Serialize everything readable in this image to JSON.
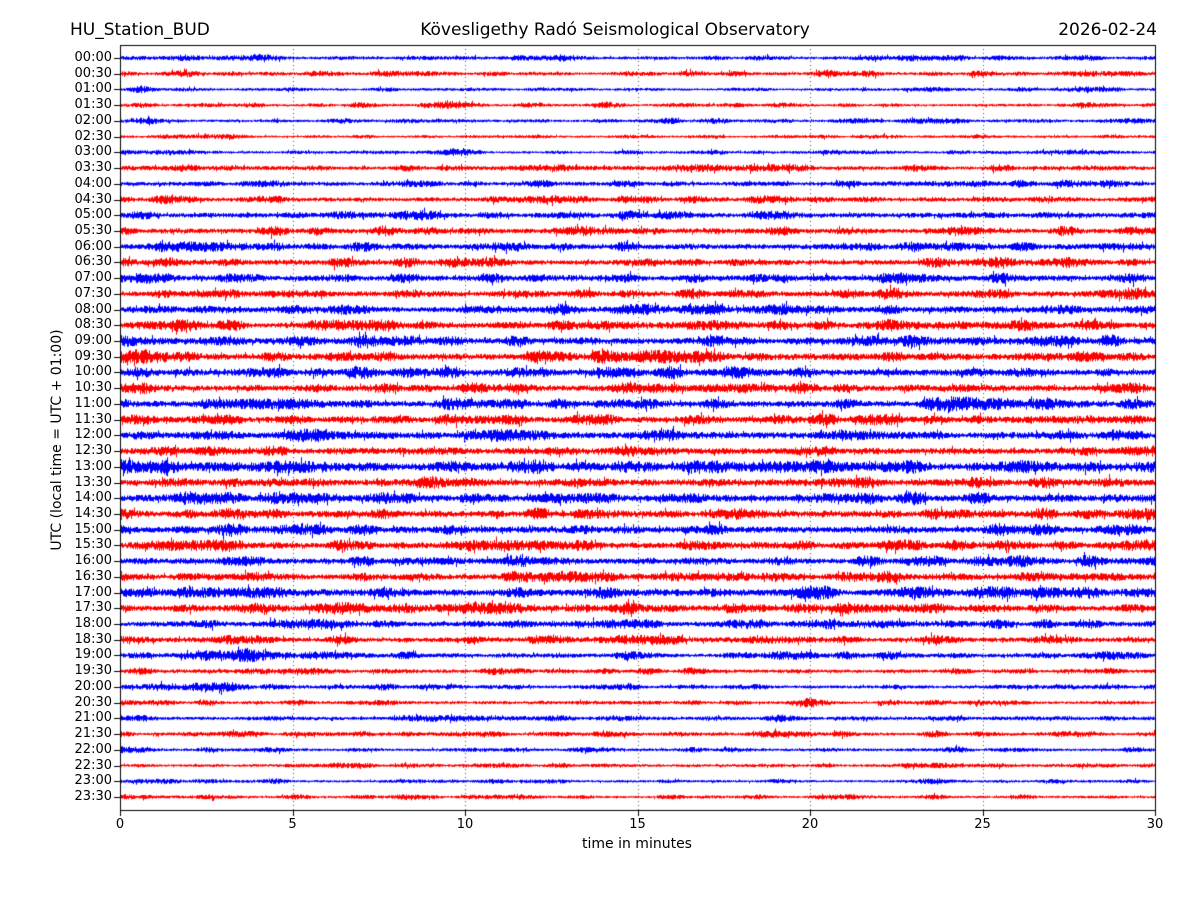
{
  "figure": {
    "title_left": "HU_Station_BUD",
    "title_center": "Kövesligethy Radó Seismological Observatory",
    "title_right": "2026-02-24",
    "xlabel": "time in minutes",
    "ylabel": "UTC (local time = UTC + 01:00)"
  },
  "chart_data": {
    "type": "line",
    "subtype": "helicorder-dayplot",
    "station": "HU_Station_BUD",
    "observatory": "Kövesligethy Radó Seismological Observatory",
    "date": "2026-02-24",
    "x_axis": {
      "label": "time in minutes",
      "range": [
        0,
        30
      ],
      "ticks": [
        0,
        5,
        10,
        15,
        20,
        25,
        30
      ],
      "grid_minutes": [
        5,
        10,
        15,
        20,
        25
      ],
      "grid_style": "dotted"
    },
    "y_axis": {
      "label": "UTC (local time = UTC + 01:00)",
      "direction": "top-to-bottom",
      "row_interval_minutes": 30
    },
    "colors": {
      "even_trace": "#0000ff",
      "odd_trace": "#ff0000",
      "grid": "#555555",
      "frame": "#000000"
    },
    "rows": [
      {
        "time": "00:00",
        "color": "#0000ff",
        "amp": 2.1,
        "events": [
          {
            "min": 4.2,
            "w": 0.4,
            "amp": 2.0
          },
          {
            "min": 13.0,
            "w": 0.5,
            "amp": 1.0
          }
        ]
      },
      {
        "time": "00:30",
        "color": "#ff0000",
        "amp": 2.1,
        "events": [
          {
            "min": 1.6,
            "w": 0.6,
            "amp": 1.2
          },
          {
            "min": 20.4,
            "w": 0.3,
            "amp": 1.5
          }
        ]
      },
      {
        "time": "01:00",
        "color": "#0000ff",
        "amp": 1.7,
        "events": [
          {
            "min": 0.6,
            "w": 0.3,
            "amp": 1.0
          }
        ]
      },
      {
        "time": "01:30",
        "color": "#ff0000",
        "amp": 1.8,
        "events": [
          {
            "min": 9.4,
            "w": 0.5,
            "amp": 1.6
          },
          {
            "min": 12.0,
            "w": 0.4,
            "amp": 1.4
          },
          {
            "min": 14.3,
            "w": 0.4,
            "amp": 1.0
          },
          {
            "min": 16.4,
            "w": 0.3,
            "amp": 1.0
          }
        ]
      },
      {
        "time": "02:00",
        "color": "#0000ff",
        "amp": 1.9,
        "events": [
          {
            "min": 0.9,
            "w": 0.4,
            "amp": 1.3
          }
        ]
      },
      {
        "time": "02:30",
        "color": "#ff0000",
        "amp": 1.5,
        "events": []
      },
      {
        "time": "03:00",
        "color": "#0000ff",
        "amp": 1.7,
        "events": [
          {
            "min": 9.9,
            "w": 0.4,
            "amp": 1.8
          },
          {
            "min": 20.6,
            "w": 0.4,
            "amp": 0.9
          },
          {
            "min": 27.6,
            "w": 0.9,
            "amp": 1.6
          }
        ]
      },
      {
        "time": "03:30",
        "color": "#ff0000",
        "amp": 2.4,
        "events": []
      },
      {
        "time": "04:00",
        "color": "#0000ff",
        "amp": 2.6,
        "events": []
      },
      {
        "time": "04:30",
        "color": "#ff0000",
        "amp": 2.7,
        "events": []
      },
      {
        "time": "05:00",
        "color": "#0000ff",
        "amp": 3.0,
        "events": []
      },
      {
        "time": "05:30",
        "color": "#ff0000",
        "amp": 3.3,
        "events": []
      },
      {
        "time": "06:00",
        "color": "#0000ff",
        "amp": 3.4,
        "events": [
          {
            "min": 23.2,
            "w": 0.7,
            "amp": 1.8
          }
        ]
      },
      {
        "time": "06:30",
        "color": "#ff0000",
        "amp": 3.4,
        "events": []
      },
      {
        "time": "07:00",
        "color": "#0000ff",
        "amp": 3.6,
        "events": []
      },
      {
        "time": "07:30",
        "color": "#ff0000",
        "amp": 3.6,
        "events": [
          {
            "min": 22.4,
            "w": 0.5,
            "amp": 1.8
          },
          {
            "min": 29.3,
            "w": 0.5,
            "amp": 1.5
          }
        ]
      },
      {
        "time": "08:00",
        "color": "#0000ff",
        "amp": 3.8,
        "events": []
      },
      {
        "time": "08:30",
        "color": "#ff0000",
        "amp": 3.9,
        "events": [
          {
            "min": 1.9,
            "w": 0.4,
            "amp": 1.2
          }
        ]
      },
      {
        "time": "09:00",
        "color": "#0000ff",
        "amp": 4.2,
        "events": []
      },
      {
        "time": "09:30",
        "color": "#ff0000",
        "amp": 4.4,
        "events": [
          {
            "min": 0.9,
            "w": 1.0,
            "amp": 2.2
          }
        ]
      },
      {
        "time": "10:00",
        "color": "#0000ff",
        "amp": 4.2,
        "events": []
      },
      {
        "time": "10:30",
        "color": "#ff0000",
        "amp": 4.0,
        "events": []
      },
      {
        "time": "11:00",
        "color": "#0000ff",
        "amp": 3.9,
        "events": [
          {
            "min": 24.1,
            "w": 0.6,
            "amp": 1.8
          }
        ]
      },
      {
        "time": "11:30",
        "color": "#ff0000",
        "amp": 3.8,
        "events": []
      },
      {
        "time": "12:00",
        "color": "#0000ff",
        "amp": 4.2,
        "events": []
      },
      {
        "time": "12:30",
        "color": "#ff0000",
        "amp": 4.0,
        "events": []
      },
      {
        "time": "13:00",
        "color": "#0000ff",
        "amp": 4.8,
        "events": [
          {
            "min": 5.8,
            "w": 0.8,
            "amp": 1.2
          }
        ]
      },
      {
        "time": "13:30",
        "color": "#ff0000",
        "amp": 4.2,
        "events": [
          {
            "min": 13.3,
            "w": 0.5,
            "amp": 1.2
          }
        ]
      },
      {
        "time": "14:00",
        "color": "#0000ff",
        "amp": 4.4,
        "events": []
      },
      {
        "time": "14:30",
        "color": "#ff0000",
        "amp": 3.9,
        "events": []
      },
      {
        "time": "15:00",
        "color": "#0000ff",
        "amp": 4.3,
        "events": [
          {
            "min": 5.2,
            "w": 0.7,
            "amp": 1.2
          }
        ]
      },
      {
        "time": "15:30",
        "color": "#ff0000",
        "amp": 3.8,
        "events": [
          {
            "min": 3.4,
            "w": 0.4,
            "amp": 1.2
          }
        ]
      },
      {
        "time": "16:00",
        "color": "#0000ff",
        "amp": 3.8,
        "events": []
      },
      {
        "time": "16:30",
        "color": "#ff0000",
        "amp": 3.8,
        "events": [
          {
            "min": 19.0,
            "w": 0.4,
            "amp": 1.6
          },
          {
            "min": 28.6,
            "w": 0.7,
            "amp": 1.8
          }
        ]
      },
      {
        "time": "17:00",
        "color": "#0000ff",
        "amp": 4.2,
        "events": [
          {
            "min": 0.6,
            "w": 0.7,
            "amp": 1.6
          }
        ]
      },
      {
        "time": "17:30",
        "color": "#ff0000",
        "amp": 4.0,
        "events": []
      },
      {
        "time": "18:00",
        "color": "#0000ff",
        "amp": 3.3,
        "events": []
      },
      {
        "time": "18:30",
        "color": "#ff0000",
        "amp": 3.1,
        "events": []
      },
      {
        "time": "19:00",
        "color": "#0000ff",
        "amp": 2.8,
        "events": [
          {
            "min": 3.1,
            "w": 1.1,
            "amp": 4.5
          }
        ]
      },
      {
        "time": "19:30",
        "color": "#ff0000",
        "amp": 2.3,
        "events": []
      },
      {
        "time": "20:00",
        "color": "#0000ff",
        "amp": 2.3,
        "events": [
          {
            "min": 2.5,
            "w": 1.0,
            "amp": 2.6
          }
        ]
      },
      {
        "time": "20:30",
        "color": "#ff0000",
        "amp": 2.0,
        "events": [
          {
            "min": 20.0,
            "w": 0.45,
            "amp": 2.8
          }
        ]
      },
      {
        "time": "21:00",
        "color": "#0000ff",
        "amp": 2.3,
        "events": []
      },
      {
        "time": "21:30",
        "color": "#ff0000",
        "amp": 2.1,
        "events": [
          {
            "min": 18.8,
            "w": 0.4,
            "amp": 1.2
          },
          {
            "min": 20.9,
            "w": 0.3,
            "amp": 1.0
          }
        ]
      },
      {
        "time": "22:00",
        "color": "#0000ff",
        "amp": 2.0,
        "events": []
      },
      {
        "time": "22:30",
        "color": "#ff0000",
        "amp": 1.9,
        "events": []
      },
      {
        "time": "23:00",
        "color": "#0000ff",
        "amp": 1.8,
        "events": [
          {
            "min": 27.1,
            "w": 0.4,
            "amp": 1.2
          }
        ]
      },
      {
        "time": "23:30",
        "color": "#ff0000",
        "amp": 1.8,
        "events": [
          {
            "min": 11.6,
            "w": 0.5,
            "amp": 1.0
          }
        ]
      }
    ]
  }
}
